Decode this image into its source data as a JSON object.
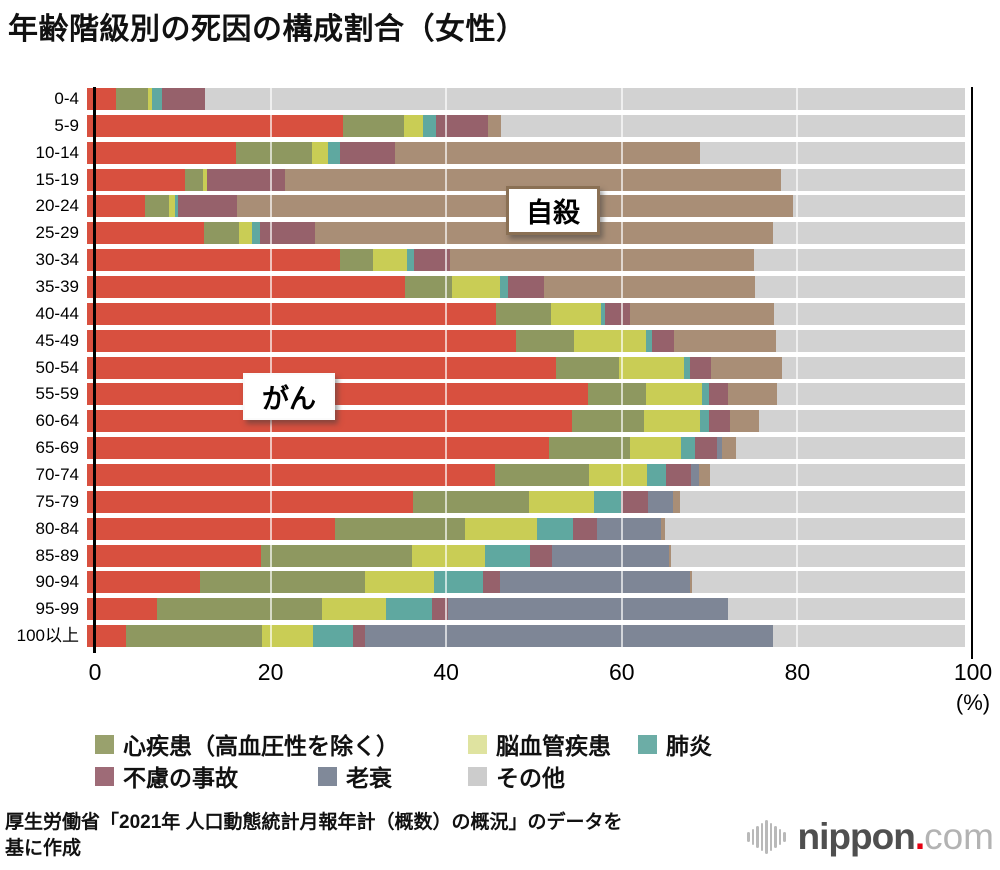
{
  "title": "年齢階級別の死因の構成割合（女性）",
  "chart_data": {
    "type": "bar",
    "orientation": "horizontal-stacked",
    "unit": "(%)",
    "xlim": [
      0,
      100
    ],
    "x_ticks": [
      0,
      20,
      40,
      60,
      80,
      100
    ],
    "grid": "vertical white lines at 20/40/60/80",
    "categories": [
      "0-4",
      "5-9",
      "10-14",
      "15-19",
      "20-24",
      "25-29",
      "30-34",
      "35-39",
      "40-44",
      "45-49",
      "50-54",
      "55-59",
      "60-64",
      "65-69",
      "70-74",
      "75-79",
      "80-84",
      "85-89",
      "90-94",
      "95-99",
      "100以上"
    ],
    "series": [
      {
        "key": "cancer",
        "name": "がん",
        "color": "#d8503f",
        "values": [
          3.3,
          29.2,
          17.0,
          11.2,
          6.6,
          13.3,
          28.8,
          36.2,
          46.6,
          48.9,
          53.4,
          57.1,
          55.2,
          52.6,
          46.5,
          37.1,
          28.2,
          19.8,
          12.9,
          8.0,
          4.4
        ]
      },
      {
        "key": "heart-disease",
        "name": "心疾患（高血圧性を除く）",
        "color": "#8e9860",
        "values": [
          3.6,
          6.9,
          8.6,
          2.0,
          2.7,
          4.0,
          3.8,
          5.4,
          6.3,
          6.6,
          7.2,
          6.6,
          8.2,
          9.2,
          10.7,
          13.2,
          14.9,
          17.2,
          18.8,
          18.8,
          15.5
        ]
      },
      {
        "key": "cerebrovascular",
        "name": "脳血管疾患",
        "color": "#c9cd55",
        "values": [
          0.5,
          2.2,
          1.9,
          0.5,
          0.7,
          1.5,
          3.8,
          5.4,
          5.6,
          8.2,
          7.4,
          6.3,
          6.4,
          5.8,
          6.6,
          7.4,
          8.1,
          8.3,
          7.8,
          7.2,
          5.8
        ]
      },
      {
        "key": "pneumonia",
        "name": "肺炎",
        "color": "#5fa8a0",
        "values": [
          1.2,
          1.4,
          1.3,
          0.0,
          0.4,
          0.9,
          0.8,
          0.9,
          0.5,
          0.7,
          0.7,
          0.8,
          1.0,
          1.7,
          2.1,
          3.1,
          4.2,
          5.2,
          5.6,
          5.3,
          4.6
        ]
      },
      {
        "key": "accident",
        "name": "不慮の事故",
        "color": "#96616b",
        "values": [
          4.9,
          6.0,
          6.3,
          8.8,
          6.7,
          6.3,
          4.2,
          4.1,
          2.8,
          2.5,
          2.4,
          2.2,
          2.4,
          2.5,
          2.9,
          3.1,
          2.7,
          2.5,
          2.0,
          1.8,
          1.4
        ]
      },
      {
        "key": "senility",
        "name": "老衰",
        "color": "#7e8696",
        "values": [
          0,
          0,
          0,
          0,
          0,
          0,
          0,
          0,
          0,
          0,
          0,
          0,
          0,
          0.5,
          0.9,
          2.8,
          7.3,
          13.3,
          21.6,
          31.9,
          46.4
        ]
      },
      {
        "key": "suicide",
        "name": "自殺",
        "color": "#a98e76",
        "values": [
          0,
          1.5,
          34.7,
          56.6,
          63.3,
          52.1,
          34.6,
          24.1,
          16.5,
          11.6,
          8.1,
          5.6,
          3.4,
          1.6,
          1.3,
          0.8,
          0.4,
          0.2,
          0.2,
          0,
          0
        ]
      },
      {
        "key": "other",
        "name": "その他",
        "color": "#d2d2d2",
        "values": [
          86.5,
          52.8,
          30.2,
          20.9,
          19.6,
          21.9,
          24.0,
          23.9,
          21.7,
          21.5,
          20.8,
          21.4,
          23.4,
          26.1,
          29.0,
          32.5,
          34.2,
          33.5,
          31.1,
          27.0,
          21.9
        ]
      }
    ],
    "annotations": [
      {
        "key": "cancer",
        "text": "がん"
      },
      {
        "key": "suicide",
        "text": "自殺"
      }
    ]
  },
  "legend": {
    "rows": [
      [
        {
          "key": "heart-disease",
          "label": "心疾患（高血圧性を除く）",
          "color": "#99a16d"
        },
        {
          "key": "cerebrovascular",
          "label": "脳血管疾患",
          "color": "#dfe3a0"
        },
        {
          "key": "pneumonia",
          "label": "肺炎",
          "color": "#6cada6"
        }
      ],
      [
        {
          "key": "accident",
          "label": "不慮の事故",
          "color": "#9e6b77"
        },
        {
          "key": "senility",
          "label": "老衰",
          "color": "#808999"
        },
        {
          "key": "other",
          "label": "その他",
          "color": "#cccccc"
        }
      ]
    ]
  },
  "x_axis": {
    "unit_label": "(%)"
  },
  "source_lines": [
    "厚生労働省「2021年 人口動態統計月報年計（概数）の概況」のデータを",
    "基に作成"
  ],
  "logo": {
    "name": "nippon",
    "dot": ".",
    "tld": "com"
  }
}
